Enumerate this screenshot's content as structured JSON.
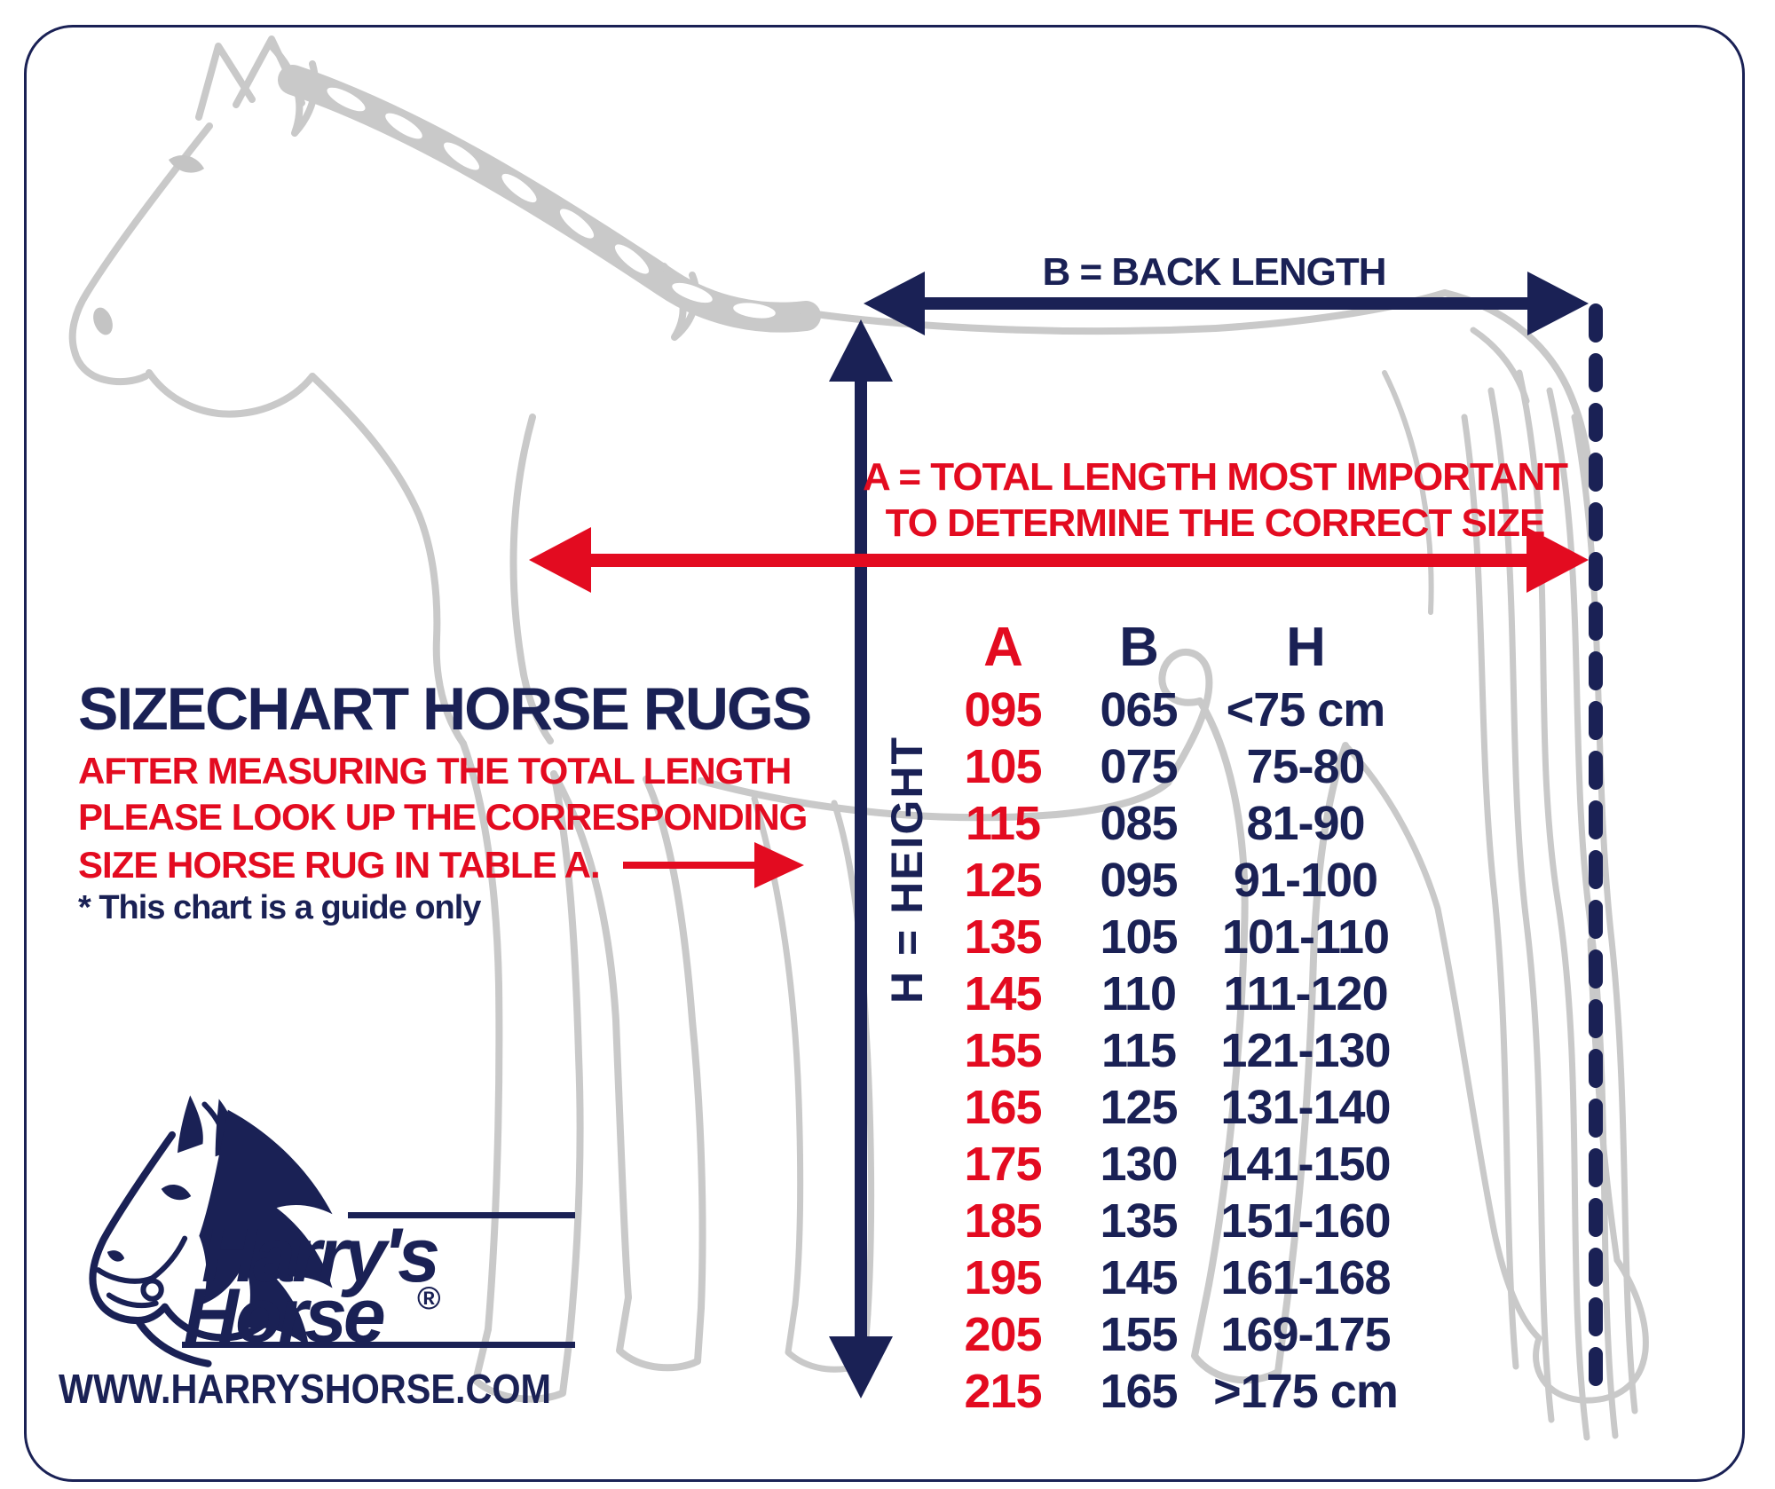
{
  "colors": {
    "navy": "#1a2155",
    "red": "#e30b20",
    "gray": "#c9c9c9"
  },
  "measurements": {
    "back_length_label": "B = BACK LENGTH",
    "total_length_label_line1": "A = TOTAL LENGTH MOST IMPORTANT",
    "total_length_label_line2": "TO DETERMINE THE CORRECT SIZE",
    "height_label": "H = HEIGHT"
  },
  "info": {
    "title": "SIZECHART HORSE RUGS",
    "instruction_line1": "AFTER MEASURING THE TOTAL LENGTH",
    "instruction_line2": "PLEASE LOOK UP THE CORRESPONDING",
    "instruction_line3": "SIZE HORSE RUG IN TABLE A.",
    "note": "* This chart is a guide only"
  },
  "brand": {
    "name_line1": "Harry's",
    "name_line2": "Horse",
    "registered_mark": "®",
    "website": "WWW.HARRYSHORSE.COM"
  },
  "chart_data": {
    "type": "table",
    "title": "SIZECHART HORSE RUGS",
    "columns": [
      "A",
      "B",
      "H"
    ],
    "rows": [
      [
        "095",
        "065",
        "<75 cm"
      ],
      [
        "105",
        "075",
        "75-80"
      ],
      [
        "115",
        "085",
        "81-90"
      ],
      [
        "125",
        "095",
        "91-100"
      ],
      [
        "135",
        "105",
        "101-110"
      ],
      [
        "145",
        "110",
        "111-120"
      ],
      [
        "155",
        "115",
        "121-130"
      ],
      [
        "165",
        "125",
        "131-140"
      ],
      [
        "175",
        "130",
        "141-150"
      ],
      [
        "185",
        "135",
        "151-160"
      ],
      [
        "195",
        "145",
        "161-168"
      ],
      [
        "205",
        "155",
        "169-175"
      ],
      [
        "215",
        "165",
        ">175 cm"
      ]
    ],
    "column_colors": {
      "A": "#e30b20",
      "B": "#1a2155",
      "H": "#1a2155"
    }
  }
}
